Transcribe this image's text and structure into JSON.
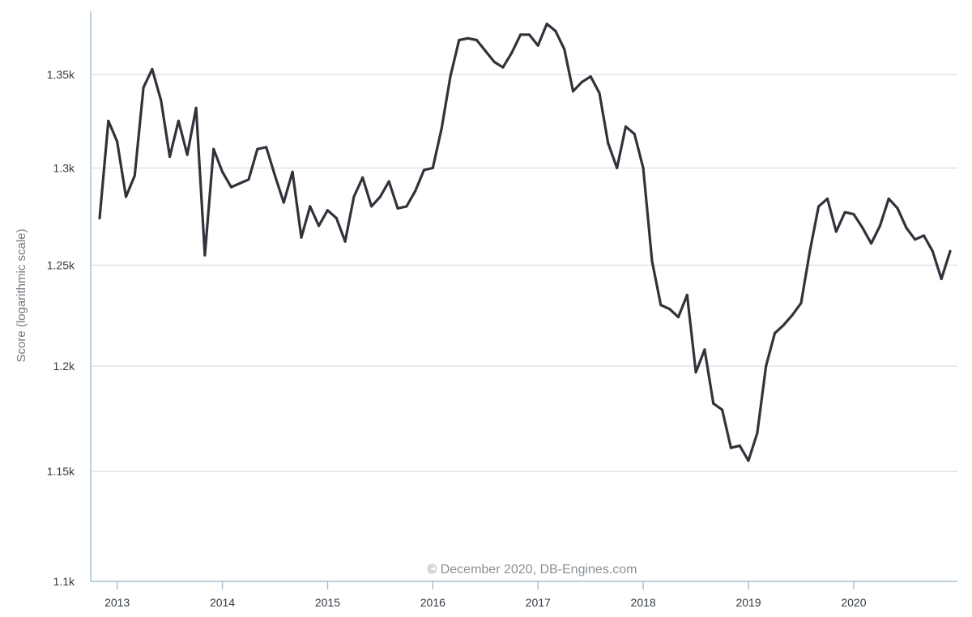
{
  "chart_data": {
    "type": "line",
    "title": "",
    "xlabel": "",
    "ylabel": "Score (logarithmic scale)",
    "y_scale": "log",
    "ylim": [
      1100,
      1385
    ],
    "xlim": [
      "2012-11",
      "2020-12"
    ],
    "y_ticks": [
      {
        "value": 1100,
        "label": "1.1k"
      },
      {
        "value": 1150,
        "label": "1.15k"
      },
      {
        "value": 1200,
        "label": "1.2k"
      },
      {
        "value": 1250,
        "label": "1.25k"
      },
      {
        "value": 1300,
        "label": "1.3k"
      },
      {
        "value": 1350,
        "label": "1.35k"
      }
    ],
    "x_ticks": [
      "2013",
      "2014",
      "2015",
      "2016",
      "2017",
      "2018",
      "2019",
      "2020"
    ],
    "grid": true,
    "legend": "none",
    "annotation": "© December 2020, DB-Engines.com",
    "line_color": "#30333a",
    "series": [
      {
        "x": [
          "2012-11",
          "2012-12",
          "2013-01",
          "2013-02",
          "2013-03",
          "2013-04",
          "2013-05",
          "2013-06",
          "2013-07",
          "2013-08",
          "2013-09",
          "2013-10",
          "2013-11",
          "2013-12",
          "2014-01",
          "2014-02",
          "2014-03",
          "2014-04",
          "2014-05",
          "2014-06",
          "2014-07",
          "2014-08",
          "2014-09",
          "2014-10",
          "2014-11",
          "2014-12",
          "2015-01",
          "2015-02",
          "2015-03",
          "2015-04",
          "2015-05",
          "2015-06",
          "2015-07",
          "2015-08",
          "2015-09",
          "2015-10",
          "2015-11",
          "2015-12",
          "2016-01",
          "2016-02",
          "2016-03",
          "2016-04",
          "2016-05",
          "2016-06",
          "2016-07",
          "2016-08",
          "2016-09",
          "2016-10",
          "2016-11",
          "2016-12",
          "2017-01",
          "2017-02",
          "2017-03",
          "2017-04",
          "2017-05",
          "2017-06",
          "2017-07",
          "2017-08",
          "2017-09",
          "2017-10",
          "2017-11",
          "2017-12",
          "2018-01",
          "2018-02",
          "2018-03",
          "2018-04",
          "2018-05",
          "2018-06",
          "2018-07",
          "2018-08",
          "2018-09",
          "2018-10",
          "2018-11",
          "2018-12",
          "2019-01",
          "2019-02",
          "2019-03",
          "2019-04",
          "2019-05",
          "2019-06",
          "2019-07",
          "2019-08",
          "2019-09",
          "2019-10",
          "2019-11",
          "2019-12",
          "2020-01",
          "2020-02",
          "2020-03",
          "2020-04",
          "2020-05",
          "2020-06",
          "2020-07",
          "2020-08",
          "2020-09",
          "2020-10",
          "2020-11",
          "2020-12"
        ],
        "values": [
          1274,
          1325,
          1314,
          1285,
          1296,
          1343,
          1353,
          1336,
          1306,
          1325,
          1307,
          1332,
          1255,
          1310,
          1298,
          1290,
          1292,
          1294,
          1310,
          1311,
          1296,
          1282,
          1298,
          1264,
          1280,
          1270,
          1278,
          1274,
          1262,
          1285,
          1295,
          1280,
          1285,
          1293,
          1279,
          1280,
          1288,
          1299,
          1300,
          1321,
          1349,
          1369,
          1370,
          1369,
          1363,
          1357,
          1354,
          1362,
          1372,
          1372,
          1366,
          1378,
          1374,
          1364,
          1341,
          1346,
          1349,
          1340,
          1313,
          1300,
          1322,
          1318,
          1300,
          1252,
          1230,
          1228,
          1224,
          1235,
          1197,
          1208,
          1182,
          1179,
          1161,
          1162,
          1155,
          1168,
          1200,
          1216,
          1220,
          1225,
          1231,
          1257,
          1280,
          1284,
          1267,
          1277,
          1276,
          1269,
          1261,
          1270,
          1284,
          1279,
          1269,
          1263,
          1265,
          1257,
          1243,
          1257
        ]
      }
    ]
  }
}
